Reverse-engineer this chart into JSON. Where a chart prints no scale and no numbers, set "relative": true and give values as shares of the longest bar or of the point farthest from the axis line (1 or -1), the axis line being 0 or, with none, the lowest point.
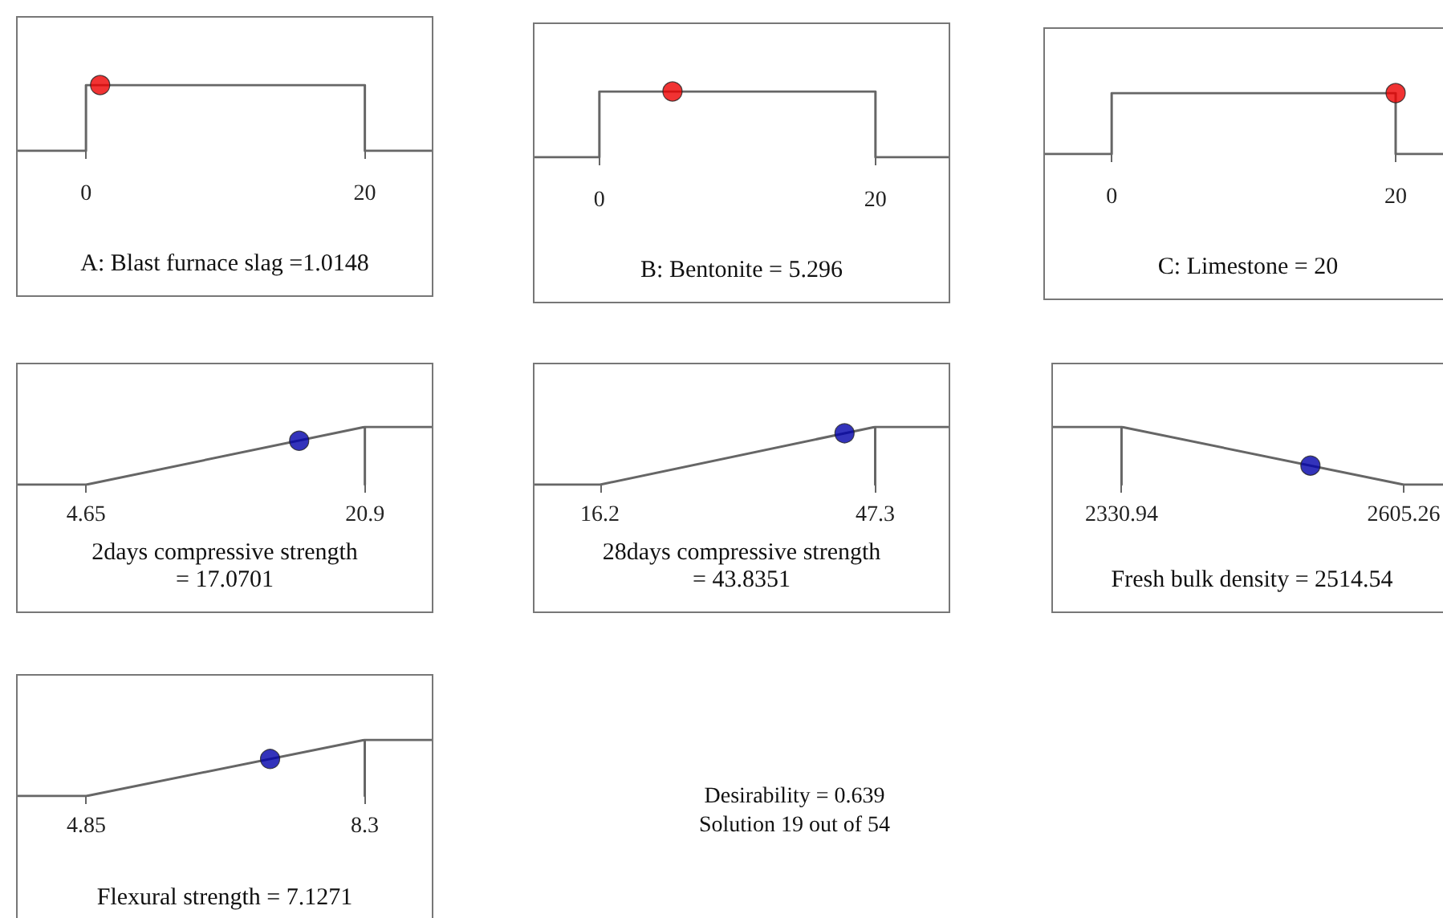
{
  "chart_data": [
    {
      "type": "line",
      "relative": true,
      "tick_labels": "x",
      "xlabel": "A: Blast furnace slag =1.0148",
      "xlim": [
        -4.9,
        24.8
      ],
      "xticks": [
        0,
        20
      ],
      "series": [
        {
          "type": "line",
          "marker": "none",
          "color": "#666666",
          "x": [
            -4.9,
            0,
            0,
            20,
            20,
            24.8
          ],
          "values": [
            0,
            0,
            1,
            1,
            0,
            0
          ]
        },
        {
          "type": "scatter",
          "marker": "circle",
          "color": "#ee0000",
          "x": [
            1.0148
          ],
          "values": [
            1
          ]
        }
      ]
    },
    {
      "type": "line",
      "relative": true,
      "tick_labels": "x",
      "xlabel": "B: Bentonite = 5.296",
      "xlim": [
        -4.7,
        25.3
      ],
      "xticks": [
        0,
        20
      ],
      "series": [
        {
          "type": "line",
          "marker": "none",
          "color": "#666666",
          "x": [
            -4.7,
            0,
            0,
            20,
            20,
            25.3
          ],
          "values": [
            0,
            0,
            1,
            1,
            0,
            0
          ]
        },
        {
          "type": "scatter",
          "marker": "circle",
          "color": "#ee0000",
          "x": [
            5.296
          ],
          "values": [
            1
          ]
        }
      ]
    },
    {
      "type": "line",
      "relative": true,
      "tick_labels": "x",
      "xlabel": "C: Limestone = 20",
      "xlim": [
        -4.7,
        23.9
      ],
      "xticks": [
        0,
        20
      ],
      "series": [
        {
          "type": "line",
          "marker": "none",
          "color": "#666666",
          "x": [
            -4.7,
            0,
            0,
            20,
            20,
            23.9
          ],
          "values": [
            0,
            0,
            1,
            1,
            0,
            0
          ]
        },
        {
          "type": "scatter",
          "marker": "circle",
          "color": "#ee0000",
          "x": [
            20
          ],
          "values": [
            1
          ]
        }
      ]
    },
    {
      "type": "line",
      "relative": true,
      "tick_labels": "x",
      "xlabel": "2days compressive strength\n= 17.0701",
      "xlim": [
        0.66,
        24.8
      ],
      "xticks": [
        4.65,
        20.9
      ],
      "series": [
        {
          "type": "line",
          "marker": "none",
          "color": "#666666",
          "x": [
            0.66,
            4.65,
            20.9,
            20.9,
            20.9,
            24.8
          ],
          "values": [
            0,
            0,
            1,
            0,
            1,
            1
          ]
        },
        {
          "type": "scatter",
          "marker": "circle",
          "color": "#0000aa",
          "x": [
            17.0701
          ],
          "values": [
            0.76
          ]
        }
      ]
    },
    {
      "type": "line",
      "relative": true,
      "tick_labels": "x",
      "xlabel": "28days compressive strength\n= 43.8351",
      "xlim": [
        8.8,
        55.6
      ],
      "xticks": [
        16.2,
        47.3
      ],
      "series": [
        {
          "type": "line",
          "marker": "none",
          "color": "#666666",
          "x": [
            8.8,
            16.2,
            47.3,
            47.3,
            47.3,
            55.6
          ],
          "values": [
            0,
            0,
            1,
            0,
            1,
            1
          ]
        },
        {
          "type": "scatter",
          "marker": "circle",
          "color": "#0000aa",
          "x": [
            43.8351
          ],
          "values": [
            0.89
          ]
        }
      ]
    },
    {
      "type": "line",
      "relative": true,
      "tick_labels": "x",
      "xlabel": "Fresh bulk density = 2514.54",
      "xlim": [
        2264.3,
        2651.2
      ],
      "xticks": [
        2330.94,
        2605.26
      ],
      "series": [
        {
          "type": "line",
          "marker": "none",
          "color": "#666666",
          "x": [
            2264.3,
            2330.94,
            2330.94,
            2330.94,
            2605.26,
            2651.2
          ],
          "values": [
            1,
            1,
            0,
            1,
            0,
            0
          ]
        },
        {
          "type": "scatter",
          "marker": "circle",
          "color": "#0000aa",
          "x": [
            2514.54
          ],
          "values": [
            0.33
          ]
        }
      ]
    },
    {
      "type": "line",
      "relative": true,
      "tick_labels": "x",
      "xlabel": "Flexural strength = 7.1271",
      "xlim": [
        4.0,
        9.13
      ],
      "xticks": [
        4.85,
        8.3
      ],
      "series": [
        {
          "type": "line",
          "marker": "none",
          "color": "#666666",
          "x": [
            4.0,
            4.85,
            8.3,
            8.3,
            8.3,
            9.13
          ],
          "values": [
            0,
            0,
            1,
            0,
            1,
            1
          ]
        },
        {
          "type": "scatter",
          "marker": "circle",
          "color": "#0000aa",
          "x": [
            7.1271
          ],
          "values": [
            0.66
          ]
        }
      ]
    },
    {
      "type": "other",
      "annotations": [
        "Desirability = 0.639",
        "Solution 19 out of 54"
      ]
    }
  ]
}
